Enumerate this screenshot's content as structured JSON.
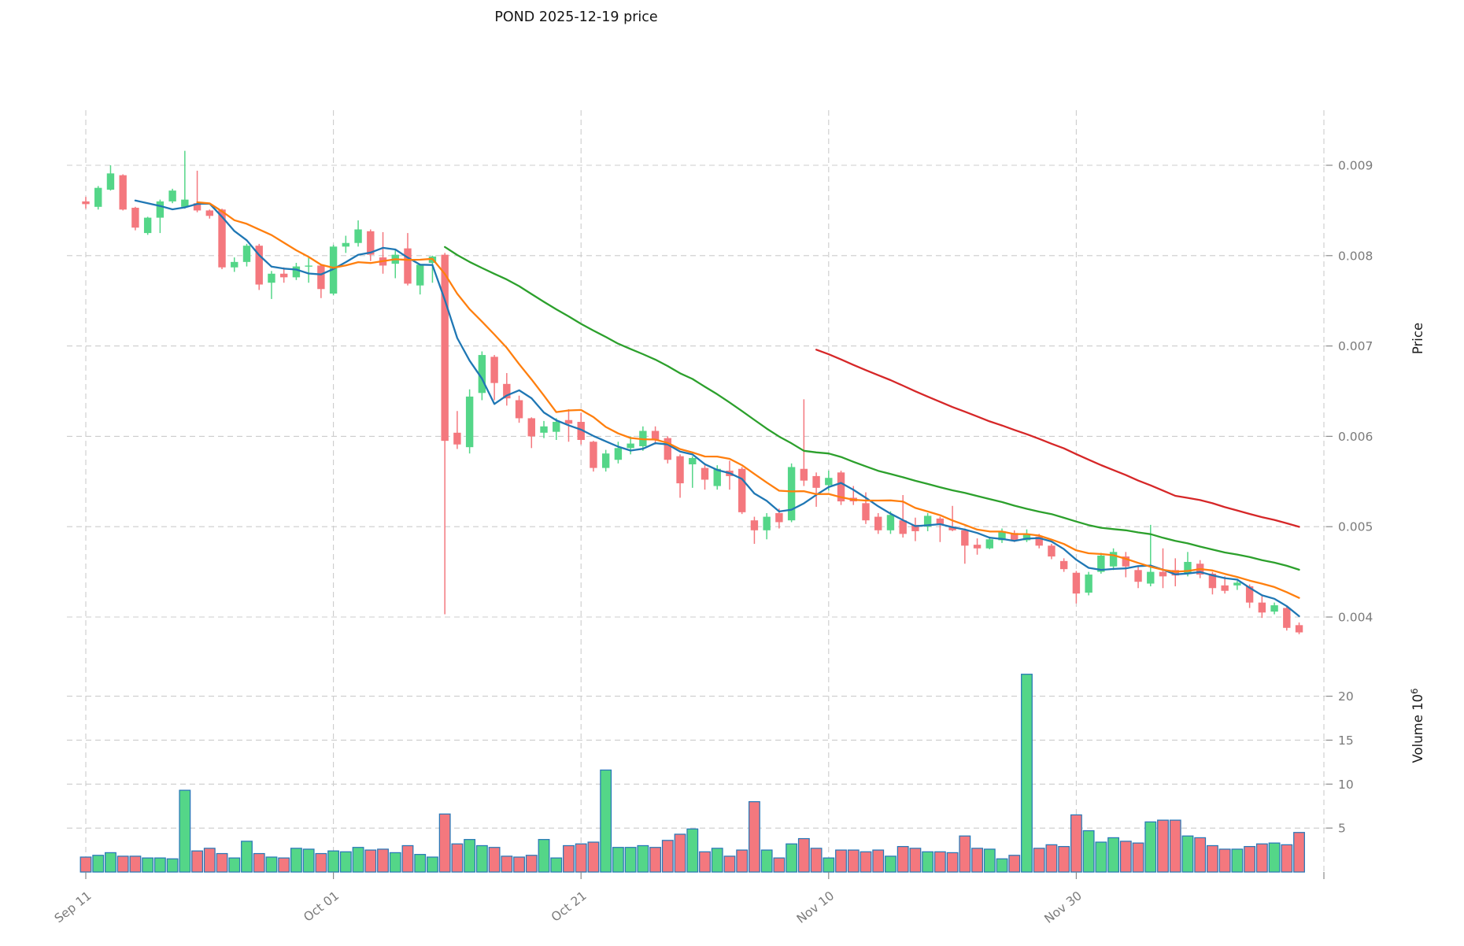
{
  "title": "POND  2025-12-19  price",
  "price_axis": {
    "label": "Price",
    "ticks": [
      "0.009",
      "0.008",
      "0.007",
      "0.006",
      "0.005",
      "0.004"
    ],
    "tick_values": [
      0.009,
      0.008,
      0.007,
      0.006,
      0.005,
      0.004
    ]
  },
  "volume_axis": {
    "label": "Volume",
    "label_unit": "Volume  10",
    "exponent": "6",
    "ticks": [
      "20",
      "15",
      "10",
      "5"
    ],
    "tick_values": [
      20,
      15,
      10,
      5
    ]
  },
  "x_axis": {
    "tick_labels": [
      "Sep 11",
      "Oct 01",
      "Oct 21",
      "Nov 10",
      "Nov 30"
    ],
    "tick_indices": [
      0,
      20,
      40,
      60,
      80
    ],
    "edge_gridline_index": 100
  },
  "colors": {
    "up": "#54d688",
    "down": "#f4787e",
    "volume_edge": "#2878b8",
    "grid": "#cccccc",
    "tick_text": "#7a7a7a",
    "ma5": "#1f77b4",
    "ma10": "#ff7f0e",
    "ma30": "#2ca02c",
    "ma60": "#d62728"
  },
  "chart_data": {
    "type": "candlestick",
    "symbol": "POND",
    "as_of_date": "2025-12-19",
    "ylabel": "Price",
    "ylabel_right": true,
    "volume_panel": true,
    "volume_unit": 1000000,
    "price_range": [
      0.0037,
      0.0095
    ],
    "volume_ticks": [
      5,
      10,
      15,
      20
    ],
    "grid": "dashed",
    "moving_averages": [
      {
        "name": "SMA5",
        "window": 5,
        "color": "#1f77b4"
      },
      {
        "name": "SMA10",
        "window": 10,
        "color": "#ff7f0e"
      },
      {
        "name": "SMA30",
        "window": 30,
        "color": "#2ca02c"
      },
      {
        "name": "SMA60",
        "window": 60,
        "color": "#d62728"
      }
    ],
    "columns": [
      "date",
      "open",
      "high",
      "low",
      "close",
      "volume_millions"
    ],
    "candles": [
      [
        "2025-09-11",
        0.0086,
        0.00865,
        0.00852,
        0.00857,
        1.7
      ],
      [
        "2025-09-12",
        0.00854,
        0.00877,
        0.00851,
        0.00875,
        1.9
      ],
      [
        "2025-09-13",
        0.00873,
        0.009,
        0.00872,
        0.00891,
        2.2
      ],
      [
        "2025-09-14",
        0.00889,
        0.0089,
        0.0085,
        0.00851,
        1.8
      ],
      [
        "2025-09-15",
        0.00853,
        0.00854,
        0.00828,
        0.00831,
        1.8
      ],
      [
        "2025-09-16",
        0.00825,
        0.00843,
        0.00823,
        0.00842,
        1.6
      ],
      [
        "2025-09-17",
        0.00842,
        0.00862,
        0.00825,
        0.0086,
        1.6
      ],
      [
        "2025-09-18",
        0.0086,
        0.00874,
        0.00858,
        0.00872,
        1.5
      ],
      [
        "2025-09-19",
        0.00854,
        0.00916,
        0.00852,
        0.00862,
        9.3
      ],
      [
        "2025-09-20",
        0.00858,
        0.00894,
        0.00848,
        0.0085,
        2.4
      ],
      [
        "2025-09-21",
        0.0085,
        0.00851,
        0.00841,
        0.00844,
        2.7
      ],
      [
        "2025-09-22",
        0.00851,
        0.00852,
        0.00785,
        0.00787,
        2.1
      ],
      [
        "2025-09-23",
        0.00787,
        0.00798,
        0.00782,
        0.00793,
        1.6
      ],
      [
        "2025-09-24",
        0.00793,
        0.00813,
        0.00788,
        0.00811,
        3.5
      ],
      [
        "2025-09-25",
        0.00811,
        0.00813,
        0.00762,
        0.00768,
        2.1
      ],
      [
        "2025-09-26",
        0.0077,
        0.00783,
        0.00752,
        0.0078,
        1.7
      ],
      [
        "2025-09-27",
        0.0078,
        0.00787,
        0.0077,
        0.00776,
        1.6
      ],
      [
        "2025-09-28",
        0.00776,
        0.00792,
        0.00773,
        0.00788,
        2.7
      ],
      [
        "2025-09-29",
        0.00788,
        0.00799,
        0.0077,
        0.00789,
        2.6
      ],
      [
        "2025-09-30",
        0.00789,
        0.0079,
        0.00753,
        0.00763,
        2.1
      ],
      [
        "2025-10-01",
        0.00758,
        0.00812,
        0.00756,
        0.0081,
        2.4
      ],
      [
        "2025-10-02",
        0.0081,
        0.00822,
        0.00803,
        0.00814,
        2.3
      ],
      [
        "2025-10-03",
        0.00814,
        0.00839,
        0.0081,
        0.00829,
        2.8
      ],
      [
        "2025-10-04",
        0.00827,
        0.00829,
        0.00794,
        0.00801,
        2.5
      ],
      [
        "2025-10-05",
        0.00798,
        0.00826,
        0.0078,
        0.00789,
        2.6
      ],
      [
        "2025-10-06",
        0.00791,
        0.00807,
        0.00775,
        0.00801,
        2.2
      ],
      [
        "2025-10-07",
        0.00808,
        0.00825,
        0.00767,
        0.00769,
        3.0
      ],
      [
        "2025-10-08",
        0.00767,
        0.00791,
        0.00757,
        0.0079,
        2.0
      ],
      [
        "2025-10-09",
        0.00792,
        0.008,
        0.0077,
        0.00799,
        1.7
      ],
      [
        "2025-10-10",
        0.00801,
        0.00803,
        0.00403,
        0.00595,
        6.6
      ],
      [
        "2025-10-11",
        0.00604,
        0.00628,
        0.00586,
        0.00591,
        3.2
      ],
      [
        "2025-10-12",
        0.00588,
        0.00652,
        0.00581,
        0.00644,
        3.7
      ],
      [
        "2025-10-13",
        0.00648,
        0.00694,
        0.0064,
        0.0069,
        3.0
      ],
      [
        "2025-10-14",
        0.00688,
        0.0069,
        0.0064,
        0.00659,
        2.8
      ],
      [
        "2025-10-15",
        0.00658,
        0.0067,
        0.00634,
        0.00642,
        1.8
      ],
      [
        "2025-10-16",
        0.0064,
        0.00645,
        0.00615,
        0.0062,
        1.7
      ],
      [
        "2025-10-17",
        0.0062,
        0.00621,
        0.00587,
        0.006,
        1.9
      ],
      [
        "2025-10-18",
        0.00604,
        0.00617,
        0.00598,
        0.00611,
        3.7
      ],
      [
        "2025-10-19",
        0.00605,
        0.0062,
        0.00596,
        0.00616,
        1.6
      ],
      [
        "2025-10-20",
        0.00618,
        0.0063,
        0.00594,
        0.00614,
        3.0
      ],
      [
        "2025-10-21",
        0.00616,
        0.00626,
        0.00591,
        0.00596,
        3.2
      ],
      [
        "2025-10-22",
        0.00594,
        0.00595,
        0.00561,
        0.00565,
        3.4
      ],
      [
        "2025-10-23",
        0.00565,
        0.00585,
        0.00561,
        0.00581,
        11.6
      ],
      [
        "2025-10-24",
        0.00574,
        0.00594,
        0.0057,
        0.00587,
        2.8
      ],
      [
        "2025-10-25",
        0.00587,
        0.006,
        0.0058,
        0.00592,
        2.8
      ],
      [
        "2025-10-26",
        0.00589,
        0.00611,
        0.00584,
        0.00606,
        3.0
      ],
      [
        "2025-10-27",
        0.00606,
        0.00611,
        0.00591,
        0.00596,
        2.8
      ],
      [
        "2025-10-28",
        0.00598,
        0.006,
        0.0057,
        0.00574,
        3.6
      ],
      [
        "2025-10-29",
        0.00578,
        0.0058,
        0.00532,
        0.00548,
        4.3
      ],
      [
        "2025-10-30",
        0.00569,
        0.00578,
        0.00543,
        0.00576,
        4.9
      ],
      [
        "2025-10-31",
        0.00565,
        0.00568,
        0.00541,
        0.00552,
        2.3
      ],
      [
        "2025-11-01",
        0.00545,
        0.00568,
        0.00541,
        0.00564,
        2.7
      ],
      [
        "2025-11-02",
        0.00562,
        0.00573,
        0.00541,
        0.00556,
        1.8
      ],
      [
        "2025-11-03",
        0.00564,
        0.00566,
        0.00514,
        0.00516,
        2.5
      ],
      [
        "2025-11-04",
        0.00507,
        0.00511,
        0.00481,
        0.00496,
        8.0
      ],
      [
        "2025-11-05",
        0.00496,
        0.00515,
        0.00486,
        0.00511,
        2.5
      ],
      [
        "2025-11-06",
        0.00515,
        0.0052,
        0.00498,
        0.00505,
        1.6
      ],
      [
        "2025-11-07",
        0.00507,
        0.0057,
        0.00505,
        0.00566,
        3.2
      ],
      [
        "2025-11-08",
        0.00564,
        0.00641,
        0.00545,
        0.00551,
        3.8
      ],
      [
        "2025-11-09",
        0.00556,
        0.0056,
        0.00522,
        0.00543,
        2.7
      ],
      [
        "2025-11-10",
        0.00546,
        0.00562,
        0.0054,
        0.00554,
        1.6
      ],
      [
        "2025-11-11",
        0.0056,
        0.00562,
        0.00524,
        0.00528,
        2.5
      ],
      [
        "2025-11-12",
        0.00532,
        0.00545,
        0.00524,
        0.00528,
        2.5
      ],
      [
        "2025-11-13",
        0.00526,
        0.00538,
        0.00503,
        0.00507,
        2.3
      ],
      [
        "2025-11-14",
        0.00511,
        0.00515,
        0.00492,
        0.00496,
        2.5
      ],
      [
        "2025-11-15",
        0.00496,
        0.00517,
        0.00492,
        0.00513,
        1.8
      ],
      [
        "2025-11-16",
        0.00507,
        0.00535,
        0.00488,
        0.00492,
        2.9
      ],
      [
        "2025-11-17",
        0.00502,
        0.0051,
        0.00484,
        0.00495,
        2.7
      ],
      [
        "2025-11-18",
        0.005,
        0.00515,
        0.00495,
        0.00512,
        2.3
      ],
      [
        "2025-11-19",
        0.00509,
        0.00511,
        0.00483,
        0.00502,
        2.3
      ],
      [
        "2025-11-20",
        0.005,
        0.00523,
        0.00495,
        0.00496,
        2.2
      ],
      [
        "2025-11-21",
        0.00496,
        0.00498,
        0.00459,
        0.00479,
        4.1
      ],
      [
        "2025-11-22",
        0.0048,
        0.00487,
        0.00469,
        0.00476,
        2.7
      ],
      [
        "2025-11-23",
        0.00476,
        0.00489,
        0.00475,
        0.00486,
        2.6
      ],
      [
        "2025-11-24",
        0.00485,
        0.00498,
        0.00482,
        0.00495,
        1.5
      ],
      [
        "2025-11-25",
        0.00493,
        0.00496,
        0.00483,
        0.00485,
        1.9
      ],
      [
        "2025-11-26",
        0.00485,
        0.00497,
        0.00483,
        0.00492,
        22.5
      ],
      [
        "2025-11-27",
        0.00489,
        0.00492,
        0.00476,
        0.00479,
        2.7
      ],
      [
        "2025-11-28",
        0.00479,
        0.00481,
        0.00464,
        0.00467,
        3.1
      ],
      [
        "2025-11-29",
        0.00462,
        0.00465,
        0.0045,
        0.00453,
        2.9
      ],
      [
        "2025-11-30",
        0.00449,
        0.00451,
        0.00415,
        0.00426,
        6.5
      ],
      [
        "2025-12-01",
        0.00427,
        0.0045,
        0.00424,
        0.00447,
        4.7
      ],
      [
        "2025-12-02",
        0.0045,
        0.00471,
        0.00448,
        0.00468,
        3.4
      ],
      [
        "2025-12-03",
        0.00456,
        0.00476,
        0.00452,
        0.00472,
        3.9
      ],
      [
        "2025-12-04",
        0.00467,
        0.00472,
        0.00444,
        0.00456,
        3.5
      ],
      [
        "2025-12-05",
        0.00452,
        0.00456,
        0.00432,
        0.00439,
        3.3
      ],
      [
        "2025-12-06",
        0.00437,
        0.00502,
        0.00434,
        0.0045,
        5.7
      ],
      [
        "2025-12-07",
        0.0045,
        0.00476,
        0.00432,
        0.00445,
        5.9
      ],
      [
        "2025-12-08",
        0.00452,
        0.00465,
        0.00434,
        0.00446,
        5.9
      ],
      [
        "2025-12-09",
        0.00448,
        0.00472,
        0.00445,
        0.00461,
        4.1
      ],
      [
        "2025-12-10",
        0.00459,
        0.00463,
        0.00443,
        0.00447,
        3.9
      ],
      [
        "2025-12-11",
        0.00448,
        0.0045,
        0.00425,
        0.00432,
        3.0
      ],
      [
        "2025-12-12",
        0.00435,
        0.00445,
        0.00426,
        0.00429,
        2.6
      ],
      [
        "2025-12-13",
        0.00435,
        0.0044,
        0.0043,
        0.00438,
        2.6
      ],
      [
        "2025-12-14",
        0.00434,
        0.00436,
        0.0041,
        0.00416,
        2.9
      ],
      [
        "2025-12-15",
        0.00416,
        0.00423,
        0.00399,
        0.00405,
        3.2
      ],
      [
        "2025-12-16",
        0.00406,
        0.00416,
        0.00403,
        0.00413,
        3.3
      ],
      [
        "2025-12-17",
        0.0041,
        0.00412,
        0.00385,
        0.00388,
        3.1
      ],
      [
        "2025-12-18",
        0.00391,
        0.00394,
        0.00381,
        0.00383,
        4.5
      ]
    ]
  }
}
